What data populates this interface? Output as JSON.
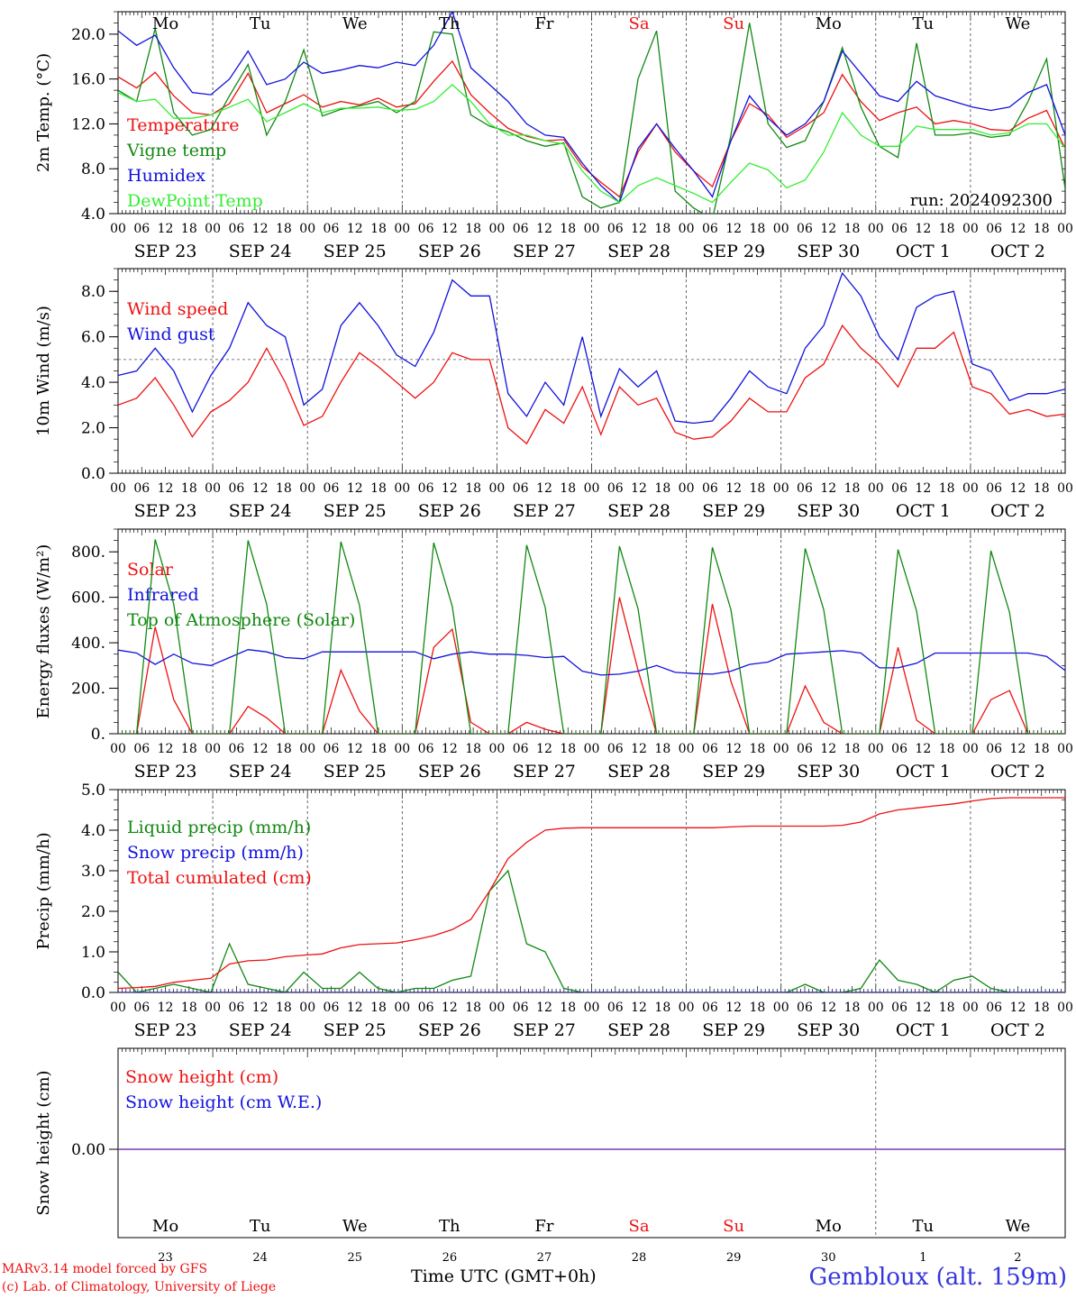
{
  "footer": {
    "credit_line1": "MARv3.14 model forced by GFS",
    "credit_line2": "(c) Lab. of Climatology, University of Liege",
    "time_label": "Time UTC (GMT+0h)",
    "station": "Gembloux (alt. 159m)"
  },
  "colors": {
    "red": "#ee1111",
    "green": "#118811",
    "blue": "#1111dd",
    "lime": "#33ee33",
    "purple": "#7733aa",
    "weekend": "#ee1111"
  },
  "chart_data": [
    {
      "type": "line",
      "ylabel": "2m Temp. (°C)",
      "ylim": [
        4.0,
        22.0
      ],
      "yticks": [
        "4.0",
        "8.0",
        "12.0",
        "16.0",
        "20.0"
      ],
      "day_labels": [
        "Mo",
        "Tu",
        "We",
        "Th",
        "Fr",
        "Sa",
        "Su",
        "Mo",
        "Tu",
        "We"
      ],
      "date_labels": [
        "SEP 23",
        "SEP 24",
        "SEP 25",
        "SEP 26",
        "SEP 27",
        "SEP 28",
        "SEP 29",
        "SEP 30",
        "OCT  1",
        "OCT  2"
      ],
      "hour_labels": [
        "00",
        "06",
        "12",
        "18"
      ],
      "run_label": "run: 2024092300",
      "x_hours_step": 6,
      "series": [
        {
          "name": "Temperature",
          "color": "#ee1111",
          "values": [
            16.2,
            15.2,
            16.6,
            14.5,
            13.0,
            12.8,
            13.8,
            16.5,
            13.0,
            13.8,
            14.6,
            13.5,
            14.0,
            13.7,
            14.3,
            13.5,
            13.8,
            15.8,
            17.6,
            14.6,
            13.0,
            11.6,
            10.9,
            10.5,
            10.6,
            8.2,
            6.8,
            5.5,
            9.5,
            12.0,
            9.5,
            7.8,
            6.4,
            10.5,
            13.8,
            12.8,
            10.8,
            11.8,
            13.0,
            16.4,
            14.0,
            12.3,
            13.0,
            13.5,
            12.0,
            12.3,
            12.0,
            11.5,
            11.4,
            12.5,
            13.2,
            9.8
          ]
        },
        {
          "name": "Vigne temp",
          "color": "#118811",
          "values": [
            15.0,
            14.0,
            20.5,
            13.0,
            11.0,
            11.5,
            14.5,
            17.3,
            11.0,
            14.0,
            18.6,
            12.7,
            13.3,
            13.6,
            14.0,
            13.0,
            14.0,
            20.2,
            20.0,
            12.8,
            11.8,
            11.3,
            10.5,
            10.0,
            10.3,
            5.5,
            4.5,
            5.0,
            16.0,
            20.3,
            6.0,
            4.5,
            3.5,
            11.0,
            21.0,
            12.0,
            9.9,
            10.5,
            14.0,
            18.8,
            13.5,
            10.0,
            9.0,
            19.2,
            11.0,
            11.0,
            11.2,
            10.8,
            11.0,
            14.0,
            17.8,
            6.2
          ]
        },
        {
          "name": "Humidex",
          "color": "#1111dd",
          "values": [
            20.3,
            19.0,
            19.9,
            17.0,
            14.8,
            14.6,
            16.0,
            18.5,
            15.5,
            16.0,
            17.5,
            16.5,
            16.8,
            17.2,
            17.0,
            17.5,
            17.2,
            19.0,
            22.0,
            17.0,
            15.5,
            14.0,
            12.0,
            11.0,
            10.8,
            8.5,
            6.5,
            5.0,
            9.8,
            12.0,
            9.8,
            7.8,
            5.5,
            10.5,
            14.5,
            12.5,
            11.0,
            12.0,
            14.0,
            18.5,
            16.5,
            14.5,
            14.0,
            15.8,
            14.5,
            14.0,
            13.5,
            13.2,
            13.5,
            14.8,
            15.5,
            11.0
          ]
        },
        {
          "name": "DewPoint Temp",
          "color": "#33ee33",
          "values": [
            14.8,
            14.0,
            14.2,
            12.5,
            12.5,
            12.8,
            13.5,
            14.2,
            12.2,
            13.0,
            13.8,
            13.0,
            13.4,
            13.4,
            13.5,
            13.2,
            13.3,
            14.0,
            15.5,
            14.0,
            12.0,
            11.0,
            11.0,
            10.5,
            10.2,
            7.8,
            6.0,
            5.0,
            6.5,
            7.2,
            6.5,
            5.8,
            5.0,
            6.8,
            8.5,
            7.9,
            6.3,
            7.0,
            9.5,
            13.0,
            11.0,
            10.0,
            10.0,
            11.8,
            11.5,
            11.5,
            11.5,
            11.0,
            11.2,
            12.0,
            12.0,
            9.8
          ]
        }
      ]
    },
    {
      "type": "line",
      "ylabel": "10m Wind (m/s)",
      "ylim": [
        0.0,
        9.0
      ],
      "yticks": [
        "0.0",
        "2.0",
        "4.0",
        "6.0",
        "8.0"
      ],
      "reference_line": 5.0,
      "date_labels": [
        "SEP 23",
        "SEP 24",
        "SEP 25",
        "SEP 26",
        "SEP 27",
        "SEP 28",
        "SEP 29",
        "SEP 30",
        "OCT  1",
        "OCT  2"
      ],
      "series": [
        {
          "name": "Wind speed",
          "color": "#ee1111",
          "values": [
            3.0,
            3.3,
            4.2,
            3.0,
            1.6,
            2.7,
            3.2,
            4.0,
            5.5,
            4.0,
            2.1,
            2.5,
            4.0,
            5.3,
            4.7,
            4.0,
            3.3,
            4.0,
            5.3,
            5.0,
            5.0,
            2.0,
            1.3,
            2.8,
            2.2,
            3.8,
            1.7,
            3.8,
            3.0,
            3.3,
            1.8,
            1.5,
            1.6,
            2.3,
            3.3,
            2.7,
            2.7,
            4.2,
            4.8,
            6.5,
            5.5,
            4.8,
            3.8,
            5.5,
            5.5,
            6.2,
            3.8,
            3.5,
            2.6,
            2.8,
            2.5,
            2.6
          ]
        },
        {
          "name": "Wind gust",
          "color": "#1111dd",
          "values": [
            4.3,
            4.5,
            5.5,
            4.5,
            2.7,
            4.3,
            5.5,
            7.5,
            6.5,
            6.0,
            3.0,
            3.7,
            6.5,
            7.5,
            6.5,
            5.2,
            4.7,
            6.2,
            8.5,
            7.8,
            7.8,
            3.5,
            2.5,
            4.0,
            3.0,
            6.0,
            2.5,
            4.6,
            3.8,
            4.5,
            2.3,
            2.2,
            2.3,
            3.3,
            4.5,
            3.8,
            3.5,
            5.5,
            6.5,
            8.8,
            7.8,
            6.0,
            5.0,
            7.3,
            7.8,
            8.0,
            4.8,
            4.5,
            3.2,
            3.5,
            3.5,
            3.7
          ]
        }
      ]
    },
    {
      "type": "line",
      "ylabel": "Energy fluxes (W/m²)",
      "ylim": [
        0,
        900
      ],
      "yticks": [
        "0.",
        "200.",
        "400.",
        "600.",
        "800."
      ],
      "date_labels": [
        "SEP 23",
        "SEP 24",
        "SEP 25",
        "SEP 26",
        "SEP 27",
        "SEP 28",
        "SEP 29",
        "SEP 30",
        "OCT  1",
        "OCT  2"
      ],
      "series": [
        {
          "name": "Solar",
          "color": "#ee1111",
          "values": [
            0,
            0,
            470,
            150,
            0,
            0,
            0,
            120,
            70,
            0,
            0,
            0,
            280,
            100,
            0,
            0,
            0,
            380,
            460,
            50,
            0,
            0,
            50,
            20,
            0,
            0,
            0,
            600,
            280,
            0,
            0,
            0,
            570,
            230,
            0,
            0,
            0,
            210,
            50,
            0,
            0,
            0,
            380,
            60,
            0,
            0,
            0,
            150,
            190,
            0,
            0,
            0
          ]
        },
        {
          "name": "Infrared",
          "color": "#1111dd",
          "values": [
            368,
            355,
            305,
            350,
            310,
            300,
            335,
            370,
            360,
            335,
            330,
            360,
            360,
            360,
            360,
            360,
            360,
            330,
            350,
            360,
            350,
            350,
            345,
            335,
            340,
            275,
            258,
            262,
            275,
            300,
            270,
            265,
            262,
            275,
            305,
            315,
            350,
            355,
            360,
            365,
            355,
            290,
            290,
            310,
            355,
            355,
            355,
            355,
            355,
            355,
            340,
            278
          ]
        },
        {
          "name": "Top of Atmosphere (Solar)",
          "color": "#118811",
          "values": [
            0,
            0,
            855,
            570,
            0,
            0,
            0,
            850,
            570,
            0,
            0,
            0,
            845,
            565,
            0,
            0,
            0,
            840,
            560,
            0,
            0,
            0,
            830,
            555,
            0,
            0,
            0,
            825,
            550,
            0,
            0,
            0,
            820,
            545,
            0,
            0,
            0,
            815,
            545,
            0,
            0,
            0,
            810,
            540,
            0,
            0,
            0,
            805,
            535,
            0,
            0,
            0
          ]
        }
      ]
    },
    {
      "type": "line",
      "ylabel": "Precip (mm/h)",
      "ylim": [
        0.0,
        5.0
      ],
      "yticks": [
        "0.0",
        "1.0",
        "2.0",
        "3.0",
        "4.0",
        "5.0"
      ],
      "date_labels": [
        "SEP 23",
        "SEP 24",
        "SEP 25",
        "SEP 26",
        "SEP 27",
        "SEP 28",
        "SEP 29",
        "SEP 30",
        "OCT  1",
        "OCT  2"
      ],
      "series": [
        {
          "name": "Liquid precip (mm/h)",
          "color": "#118811",
          "values": [
            0.5,
            0.0,
            0.1,
            0.2,
            0.1,
            0.0,
            1.2,
            0.2,
            0.1,
            0.0,
            0.5,
            0.1,
            0.1,
            0.5,
            0.1,
            0.0,
            0.1,
            0.1,
            0.3,
            0.4,
            2.5,
            3.0,
            1.2,
            1.0,
            0.1,
            0.0,
            0.0,
            0.0,
            0.0,
            0.0,
            0.0,
            0.0,
            0.0,
            0.0,
            0.0,
            0.0,
            0.0,
            0.2,
            0.0,
            0.0,
            0.1,
            0.8,
            0.3,
            0.2,
            0.0,
            0.3,
            0.4,
            0.1,
            0.0,
            0.0,
            0.0,
            0.0
          ]
        },
        {
          "name": "Snow precip (mm/h)",
          "color": "#1111dd",
          "values": [
            0,
            0,
            0,
            0,
            0,
            0,
            0,
            0,
            0,
            0,
            0,
            0,
            0,
            0,
            0,
            0,
            0,
            0,
            0,
            0,
            0,
            0,
            0,
            0,
            0,
            0,
            0,
            0,
            0,
            0,
            0,
            0,
            0,
            0,
            0,
            0,
            0,
            0,
            0,
            0,
            0,
            0,
            0,
            0,
            0,
            0,
            0,
            0,
            0,
            0,
            0,
            0
          ]
        },
        {
          "name": "Total cumulated (cm)",
          "color": "#ee1111",
          "values": [
            0.1,
            0.12,
            0.15,
            0.25,
            0.3,
            0.35,
            0.7,
            0.78,
            0.8,
            0.88,
            0.92,
            0.95,
            1.1,
            1.18,
            1.2,
            1.22,
            1.3,
            1.4,
            1.55,
            1.8,
            2.5,
            3.3,
            3.7,
            4.0,
            4.05,
            4.06,
            4.06,
            4.06,
            4.06,
            4.06,
            4.06,
            4.06,
            4.06,
            4.08,
            4.1,
            4.1,
            4.1,
            4.1,
            4.1,
            4.12,
            4.2,
            4.4,
            4.5,
            4.55,
            4.6,
            4.65,
            4.72,
            4.78,
            4.8,
            4.8,
            4.8,
            4.8
          ]
        }
      ]
    },
    {
      "type": "line",
      "ylabel": "Snow height (cm)",
      "yticks": [
        "0.00"
      ],
      "day_labels": [
        "Mo",
        "Tu",
        "We",
        "Th",
        "Fr",
        "Sa",
        "Su",
        "Mo",
        "Tu",
        "We"
      ],
      "date_numbers": [
        "23",
        "24",
        "25",
        "26",
        "27",
        "28",
        "29",
        "30",
        "1",
        "2"
      ],
      "series": [
        {
          "name": "Snow height (cm)",
          "color": "#ee1111",
          "values": [
            0,
            0
          ]
        },
        {
          "name": "Snow height (cm W.E.)",
          "color": "#1111dd",
          "values": [
            0,
            0
          ]
        }
      ]
    }
  ]
}
